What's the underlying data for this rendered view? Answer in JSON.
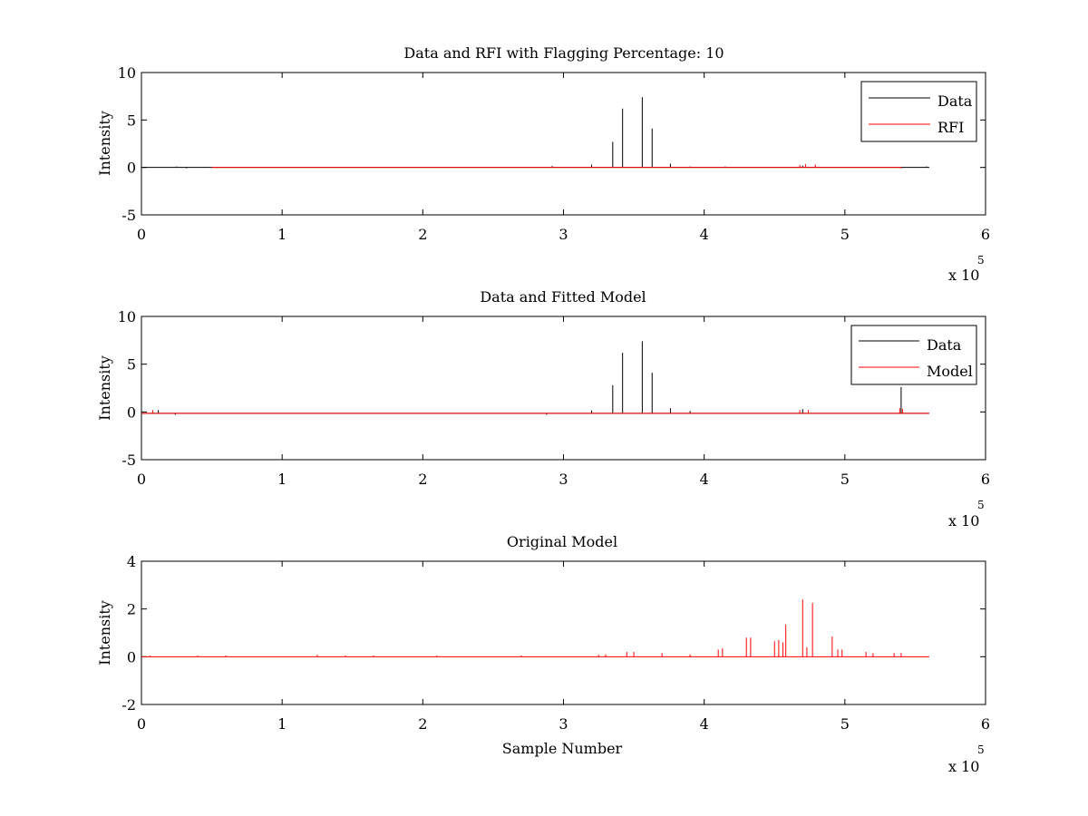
{
  "colors": {
    "data": "#000000",
    "rfi": "#ff0000",
    "axis": "#000000",
    "background": "#ffffff"
  },
  "chart_data": [
    {
      "type": "line",
      "title": "Data and RFI with Flagging Percentage: 10",
      "xlabel": "",
      "ylabel": "Intensity",
      "xlim": [
        0,
        6
      ],
      "ylim": [
        -5,
        10
      ],
      "xticks": [
        "0",
        "1",
        "2",
        "3",
        "4",
        "5",
        "6"
      ],
      "yticks": [
        "-5",
        "0",
        "5",
        "10"
      ],
      "x_multiplier": {
        "base": "x 10",
        "exponent": "5"
      },
      "legend": {
        "position": "top-right",
        "entries": [
          "Data",
          "RFI"
        ]
      },
      "series": [
        {
          "name": "Data",
          "color": "#000000",
          "baseline": 0,
          "x_range": [
            0,
            5.6
          ],
          "spikes": [
            [
              0.02,
              0.05
            ],
            [
              0.25,
              0.1
            ],
            [
              0.32,
              -0.1
            ],
            [
              0.45,
              0.05
            ],
            [
              2.92,
              0.15
            ],
            [
              3.05,
              0.05
            ],
            [
              3.2,
              0.3
            ],
            [
              3.35,
              2.7
            ],
            [
              3.42,
              6.2
            ],
            [
              3.56,
              7.4
            ],
            [
              3.63,
              4.1
            ],
            [
              3.76,
              0.4
            ],
            [
              3.9,
              0.1
            ],
            [
              4.15,
              0.1
            ],
            [
              4.7,
              0.2
            ],
            [
              5.58,
              0.1
            ]
          ]
        },
        {
          "name": "RFI",
          "color": "#ff0000",
          "baseline": 0,
          "x_range": [
            0.5,
            5.4
          ],
          "spikes": [
            [
              4.68,
              0.25
            ],
            [
              4.72,
              0.35
            ],
            [
              4.79,
              0.3
            ],
            [
              5.4,
              -0.1
            ]
          ]
        }
      ]
    },
    {
      "type": "line",
      "title": "Data and Fitted Model",
      "xlabel": "",
      "ylabel": "Intensity",
      "xlim": [
        0,
        6
      ],
      "ylim": [
        -5,
        10
      ],
      "xticks": [
        "0",
        "1",
        "2",
        "3",
        "4",
        "5",
        "6"
      ],
      "yticks": [
        "-5",
        "0",
        "5",
        "10"
      ],
      "x_multiplier": {
        "base": "x 10",
        "exponent": "5"
      },
      "legend": {
        "position": "top-right",
        "entries": [
          "Data",
          "Model"
        ]
      },
      "series": [
        {
          "name": "Data",
          "color": "#000000",
          "baseline": -0.15,
          "x_range": [
            0,
            5.6
          ],
          "spikes": [
            [
              0.12,
              0.2
            ],
            [
              0.24,
              -0.3
            ],
            [
              2.88,
              -0.3
            ],
            [
              3.2,
              0.15
            ],
            [
              3.35,
              2.8
            ],
            [
              3.42,
              6.2
            ],
            [
              3.56,
              7.4
            ],
            [
              3.63,
              4.1
            ],
            [
              3.76,
              0.4
            ],
            [
              3.9,
              0.1
            ],
            [
              4.7,
              0.3
            ],
            [
              5.4,
              2.6
            ],
            [
              5.56,
              -0.2
            ]
          ]
        },
        {
          "name": "Model",
          "color": "#ff0000",
          "baseline": -0.15,
          "x_range": [
            0,
            5.6
          ],
          "spikes": [
            [
              0.08,
              0.2
            ],
            [
              4.68,
              0.2
            ],
            [
              4.74,
              0.2
            ],
            [
              5.39,
              0.4
            ],
            [
              5.41,
              0.3
            ]
          ]
        }
      ]
    },
    {
      "type": "line",
      "title": "Original Model",
      "xlabel": "Sample Number",
      "ylabel": "Intensity",
      "xlim": [
        0,
        6
      ],
      "ylim": [
        -2,
        4
      ],
      "xticks": [
        "0",
        "1",
        "2",
        "3",
        "4",
        "5",
        "6"
      ],
      "yticks": [
        "-2",
        "0",
        "2",
        "4"
      ],
      "x_multiplier": {
        "base": "x 10",
        "exponent": "5"
      },
      "legend": null,
      "series": [
        {
          "name": "Model",
          "color": "#ff0000",
          "baseline": 0,
          "x_range": [
            0,
            5.6
          ],
          "spikes": [
            [
              0.06,
              0.05
            ],
            [
              0.4,
              0.05
            ],
            [
              0.6,
              0.05
            ],
            [
              1.25,
              0.08
            ],
            [
              1.45,
              0.05
            ],
            [
              1.65,
              0.05
            ],
            [
              2.1,
              0.05
            ],
            [
              2.7,
              0.05
            ],
            [
              3.25,
              0.08
            ],
            [
              3.3,
              0.1
            ],
            [
              3.45,
              0.2
            ],
            [
              3.5,
              0.2
            ],
            [
              3.7,
              0.15
            ],
            [
              3.9,
              0.1
            ],
            [
              4.1,
              0.3
            ],
            [
              4.13,
              0.35
            ],
            [
              4.3,
              0.8
            ],
            [
              4.33,
              0.8
            ],
            [
              4.5,
              0.65
            ],
            [
              4.53,
              0.7
            ],
            [
              4.56,
              0.6
            ],
            [
              4.58,
              1.35
            ],
            [
              4.7,
              2.4
            ],
            [
              4.73,
              0.4
            ],
            [
              4.77,
              2.25
            ],
            [
              4.91,
              0.85
            ],
            [
              4.95,
              0.3
            ],
            [
              4.98,
              0.3
            ],
            [
              5.15,
              0.2
            ],
            [
              5.2,
              0.15
            ],
            [
              5.35,
              0.15
            ],
            [
              5.4,
              0.15
            ]
          ]
        }
      ]
    }
  ]
}
